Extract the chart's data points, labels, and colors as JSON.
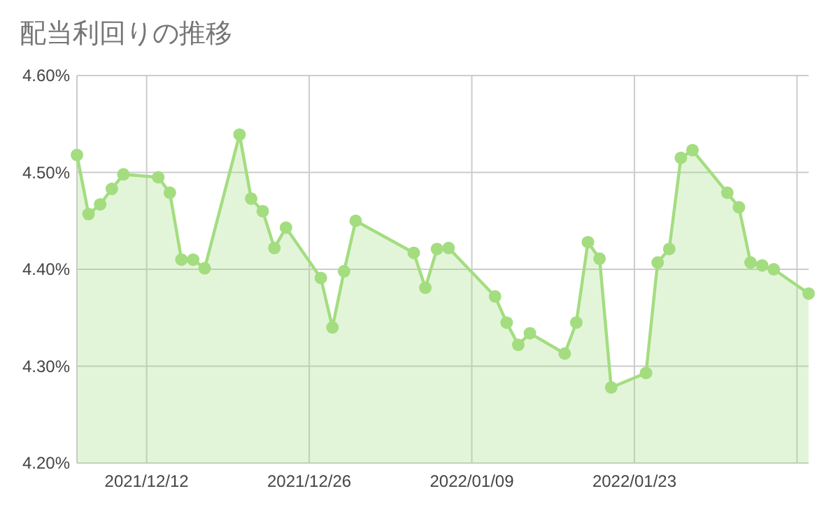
{
  "chart_data": {
    "type": "area",
    "title": "配当利回りの推移",
    "x": [
      "2021-12-06",
      "2021-12-07",
      "2021-12-08",
      "2021-12-09",
      "2021-12-10",
      "2021-12-13",
      "2021-12-14",
      "2021-12-15",
      "2021-12-16",
      "2021-12-17",
      "2021-12-20",
      "2021-12-21",
      "2021-12-22",
      "2021-12-23",
      "2021-12-24",
      "2021-12-27",
      "2021-12-28",
      "2021-12-29",
      "2021-12-30",
      "2022-01-04",
      "2022-01-05",
      "2022-01-06",
      "2022-01-07",
      "2022-01-11",
      "2022-01-12",
      "2022-01-13",
      "2022-01-14",
      "2022-01-17",
      "2022-01-18",
      "2022-01-19",
      "2022-01-20",
      "2022-01-21",
      "2022-01-24",
      "2022-01-25",
      "2022-01-26",
      "2022-01-27",
      "2022-01-28",
      "2022-01-31",
      "2022-02-01",
      "2022-02-02",
      "2022-02-03",
      "2022-02-04",
      "2022-02-07"
    ],
    "series": [
      {
        "color": "#a3dd80",
        "values": [
          4.518,
          4.457,
          4.467,
          4.483,
          4.498,
          4.495,
          4.479,
          4.41,
          4.41,
          4.401,
          4.539,
          4.473,
          4.46,
          4.422,
          4.443,
          4.391,
          4.34,
          4.398,
          4.45,
          4.417,
          4.381,
          4.421,
          4.422,
          4.372,
          4.345,
          4.322,
          4.334,
          4.313,
          4.345,
          4.428,
          4.411,
          4.278,
          4.293,
          4.407,
          4.421,
          4.515,
          4.523,
          4.479,
          4.464,
          4.407,
          4.404,
          4.4,
          4.375
        ]
      }
    ],
    "xlim": [
      "2021-12-06",
      "2022-02-07"
    ],
    "xticks": [
      {
        "value": "2021-12-12",
        "label": "2021/12/12"
      },
      {
        "value": "2021-12-26",
        "label": "2021/12/26"
      },
      {
        "value": "2022-01-09",
        "label": "2022/01/09"
      },
      {
        "value": "2022-01-23",
        "label": "2022/01/23"
      },
      {
        "value": "2022-02-06",
        "label": null
      }
    ],
    "ylim": [
      4.2,
      4.6
    ],
    "yticks": [
      {
        "value": 4.2,
        "label": "4.20%"
      },
      {
        "value": 4.3,
        "label": "4.30%"
      },
      {
        "value": 4.4,
        "label": "4.40%"
      },
      {
        "value": 4.5,
        "label": "4.50%"
      },
      {
        "value": 4.6,
        "label": "4.60%"
      }
    ],
    "grid": true,
    "marker": "circle"
  }
}
